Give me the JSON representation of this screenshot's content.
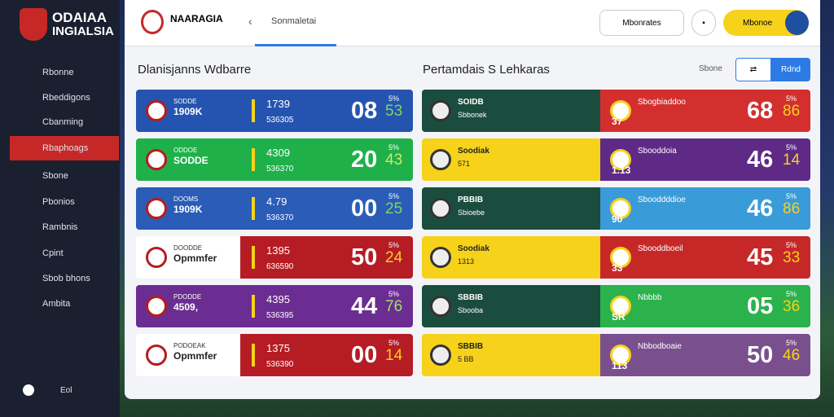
{
  "sidebar": {
    "brand": [
      "ODAIAA",
      "INGIALSIA"
    ],
    "nav": [
      "Rbonne",
      "Rbeddigons",
      "Cbanming",
      "Rbaphoags",
      "Sbone",
      "Pbonios",
      "Rambnis",
      "Cpint",
      "Sbob bhons",
      "Ambita"
    ],
    "footer": "Eol"
  },
  "topbar": {
    "brand": "NAARAGIA",
    "dropdown": "Sonmaletai",
    "button": "Mbonrates",
    "primary": "Mbonoe"
  },
  "left": {
    "title": "Dlanisjanns Wdbarre",
    "rows": [
      {
        "name": "1909K",
        "sub": "SODDE",
        "line1": "1739",
        "line2": "536305",
        "score": "08",
        "small": "53",
        "pct": "5%"
      },
      {
        "name": "SODDE",
        "sub": "ODDOE",
        "line1": "4309",
        "line2": "536370",
        "score": "20",
        "small": "43",
        "pct": "5%"
      },
      {
        "name": "1909K",
        "sub": "DOOMS",
        "line1": "4.79",
        "line2": "536370",
        "score": "00",
        "small": "25",
        "pct": "5%"
      },
      {
        "name": "Opmmfer",
        "sub": "DOODDE",
        "line1": "1395",
        "line2": "636590",
        "score": "50",
        "small": "24",
        "pct": "5%"
      },
      {
        "name": "4509,",
        "sub": "PDODDE",
        "line1": "4395",
        "line2": "536395",
        "score": "44",
        "small": "76",
        "pct": "5%"
      },
      {
        "name": "Opmmfer",
        "sub": "PODOEAK",
        "line1": "1375",
        "line2": "536390",
        "score": "00",
        "small": "14",
        "pct": "5%"
      }
    ]
  },
  "right": {
    "title": "Pertamdais S Lehkaras",
    "filter": "Sbone",
    "action": "Rdnd",
    "rows": [
      {
        "name": "SOIDB",
        "sub": "Sbbonek",
        "team": "Sbogbiaddoo",
        "code": "37",
        "score": "68",
        "small": "86",
        "pct": "5%"
      },
      {
        "name": "Soodiak",
        "sub": "571",
        "team": "Sbooddoia",
        "code": "1.13",
        "score": "46",
        "small": "14",
        "pct": "5%"
      },
      {
        "name": "PBBIB",
        "sub": "Sbioebe",
        "team": "Sbooddddioe",
        "code": "90",
        "score": "46",
        "small": "86",
        "pct": "5%"
      },
      {
        "name": "Soodiak",
        "sub": "1313",
        "team": "Sbooddboeil",
        "code": "33",
        "score": "45",
        "small": "33",
        "pct": "5%"
      },
      {
        "name": "SBBIB",
        "sub": "Sbooba",
        "team": "Nbbbb",
        "code": "SR",
        "score": "05",
        "small": "36",
        "pct": "5%"
      },
      {
        "name": "SBBIB",
        "sub": "5 BB",
        "team": "Nbbodboaie",
        "code": "113",
        "score": "50",
        "small": "46",
        "pct": "5%"
      }
    ]
  }
}
